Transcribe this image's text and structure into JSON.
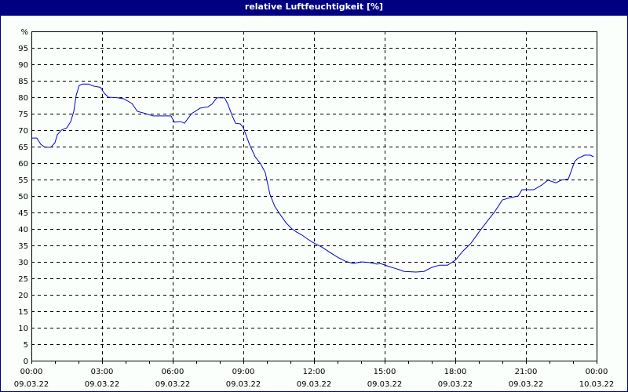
{
  "window": {
    "title": "relative Luftfeuchtigkeit [%]",
    "title_bar_color": "#000080",
    "background_color": "#fbfffb"
  },
  "chart_data": {
    "type": "line",
    "title": "relative Luftfeuchtigkeit [%]",
    "xlabel": "",
    "ylabel": "%",
    "ylim": [
      0,
      100
    ],
    "xlim_hours": [
      0,
      24
    ],
    "grid": true,
    "grid_style": "dashed",
    "legend": null,
    "y_ticks": [
      "0",
      "5",
      "10",
      "15",
      "20",
      "25",
      "30",
      "35",
      "40",
      "45",
      "50",
      "55",
      "60",
      "65",
      "70",
      "75",
      "80",
      "85",
      "90",
      "95",
      "%"
    ],
    "x_ticks": [
      {
        "time": "00:00",
        "date": "09.03.22"
      },
      {
        "time": "03:00",
        "date": "09.03.22"
      },
      {
        "time": "06:00",
        "date": "09.03.22"
      },
      {
        "time": "09:00",
        "date": "09.03.22"
      },
      {
        "time": "12:00",
        "date": "09.03.22"
      },
      {
        "time": "15:00",
        "date": "09.03.22"
      },
      {
        "time": "18:00",
        "date": "09.03.22"
      },
      {
        "time": "21:00",
        "date": "09.03.22"
      },
      {
        "time": "00:00",
        "date": "10.03.22"
      }
    ],
    "series": [
      {
        "name": "relative Luftfeuchtigkeit",
        "color": "#0000cc",
        "x_hours": [
          0.0,
          0.23,
          0.4,
          0.57,
          0.83,
          1.0,
          1.1,
          1.27,
          1.5,
          1.67,
          1.8,
          1.9,
          2.03,
          2.17,
          2.43,
          2.67,
          2.93,
          3.1,
          3.27,
          3.67,
          3.93,
          4.27,
          4.5,
          4.77,
          5.17,
          5.93,
          6.07,
          6.33,
          6.5,
          6.8,
          7.17,
          7.5,
          7.67,
          7.87,
          8.2,
          8.33,
          8.53,
          8.67,
          8.87,
          9.0,
          9.27,
          9.5,
          9.73,
          9.93,
          10.13,
          10.33,
          10.6,
          10.83,
          11.07,
          11.27,
          11.5,
          11.73,
          12.0,
          12.33,
          12.67,
          13.0,
          13.33,
          13.67,
          14.0,
          14.33,
          14.67,
          14.83,
          15.17,
          15.5,
          15.83,
          16.33,
          16.67,
          17.0,
          17.33,
          17.67,
          18.0,
          18.33,
          18.67,
          19.0,
          19.33,
          19.67,
          20.0,
          20.33,
          20.67,
          20.83,
          21.33,
          21.67,
          21.93,
          22.27,
          22.5,
          22.8,
          23.07,
          23.2,
          23.5,
          23.73,
          23.87
        ],
        "values": [
          67.6,
          67.6,
          65.7,
          64.8,
          64.8,
          66.2,
          68.6,
          70.0,
          70.7,
          72.6,
          75.7,
          80.5,
          83.6,
          84.0,
          84.0,
          83.3,
          83.0,
          81.2,
          80.0,
          79.8,
          79.5,
          78.1,
          75.7,
          75.2,
          74.3,
          74.3,
          72.4,
          72.6,
          72.1,
          75.0,
          76.7,
          77.1,
          77.9,
          79.8,
          79.8,
          78.1,
          74.3,
          72.1,
          71.9,
          70.7,
          65.5,
          61.9,
          59.8,
          57.1,
          50.5,
          46.9,
          44.0,
          41.7,
          40.0,
          39.0,
          38.1,
          36.9,
          35.7,
          34.5,
          32.9,
          31.4,
          30.2,
          29.5,
          30.0,
          29.8,
          29.3,
          29.5,
          28.6,
          27.9,
          27.1,
          26.9,
          27.1,
          28.3,
          29.0,
          29.0,
          30.5,
          33.3,
          35.7,
          39.0,
          42.1,
          45.2,
          48.8,
          49.5,
          50.0,
          51.9,
          51.9,
          53.3,
          54.8,
          54.0,
          54.8,
          55.2,
          60.5,
          61.4,
          62.4,
          62.4,
          61.9
        ]
      }
    ]
  }
}
